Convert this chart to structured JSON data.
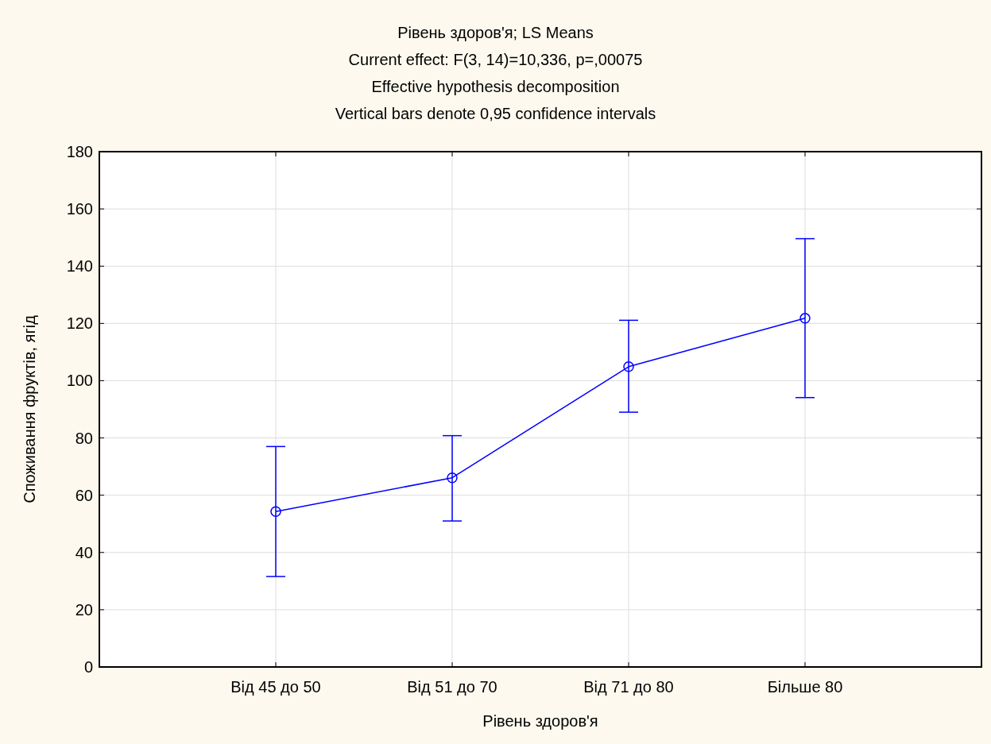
{
  "chart_data": {
    "type": "line",
    "title": "Рівень здоров'я; LS Means",
    "subtitle": "Current effect: F(3, 14)=10,336, p=,00075\nEffective hypothesis decomposition\nVertical bars denote 0,95 confidence intervals",
    "xlabel": "Рівень здоров'я",
    "ylabel": "Споживання фруктів, ягід",
    "categories": [
      "Від 45 до 50",
      "Від 51 до 70",
      "Від 71 до 80",
      "Більше 80"
    ],
    "series": [
      {
        "color": "#0000ff",
        "values": [
          54.3,
          66.1,
          104.9,
          121.8
        ],
        "errors": [
          [
            31.6,
            77.0
          ],
          [
            51.0,
            80.8
          ],
          [
            89.0,
            121.1
          ],
          [
            94.1,
            149.6
          ]
        ]
      }
    ],
    "ylim": [
      0,
      180
    ],
    "yticks": [
      0,
      20,
      40,
      60,
      80,
      100,
      120,
      140,
      160,
      180
    ],
    "grid": true,
    "marker": "circle",
    "line_style": "solid"
  }
}
